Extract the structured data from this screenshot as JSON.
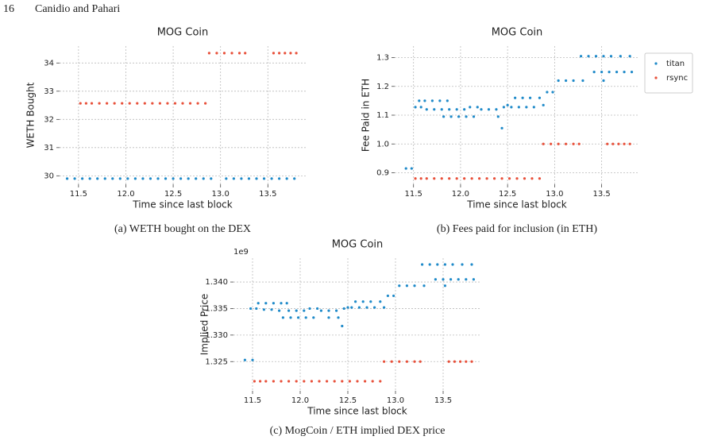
{
  "page_header": {
    "page_number": 16,
    "authors": "Canidio and Pahari"
  },
  "chart_data": [
    {
      "type": "scatter",
      "title": "MOG Coin",
      "xlabel": "Time since last block",
      "ylabel": "WETH Bought",
      "caption": "(a) WETH bought on the DEX",
      "xlim": [
        11.3,
        13.9
      ],
      "ylim": [
        29.7,
        34.6
      ],
      "xticks": [
        11.5,
        {
          "value": 12,
          "label": "12.0"
        },
        12.5,
        {
          "value": 13,
          "label": "13.0"
        },
        13.5
      ],
      "yticks": [
        30,
        31,
        32,
        33,
        34
      ],
      "grid": true,
      "series": [
        {
          "color": "#1f8ac9",
          "x": [
            11.38,
            11.46,
            11.54,
            11.62,
            11.7,
            11.78,
            11.86,
            11.94,
            12.02,
            12.1,
            12.18,
            12.26,
            12.34,
            12.42,
            12.5,
            12.58,
            12.66,
            12.74,
            12.82,
            12.9,
            13.06,
            13.14,
            13.22,
            13.3,
            13.38,
            13.46,
            13.54,
            13.62,
            13.7,
            13.78
          ],
          "values": [
            29.9,
            29.9,
            29.9,
            29.9,
            29.9,
            29.9,
            29.9,
            29.9,
            29.9,
            29.9,
            29.9,
            29.9,
            29.9,
            29.9,
            29.9,
            29.9,
            29.9,
            29.9,
            29.9,
            29.9,
            29.9,
            29.9,
            29.9,
            29.9,
            29.9,
            29.9,
            29.9,
            29.9,
            29.9,
            29.9
          ]
        },
        {
          "color": "#e8503a",
          "x": [
            11.52,
            11.58,
            11.64,
            11.72,
            11.8,
            11.88,
            11.96,
            12.04,
            12.12,
            12.2,
            12.28,
            12.36,
            12.44,
            12.52,
            12.6,
            12.68,
            12.76,
            12.84,
            12.88,
            12.96,
            13.04,
            13.12,
            13.2,
            13.26,
            13.56,
            13.62,
            13.68,
            13.74,
            13.8
          ],
          "values": [
            32.57,
            32.57,
            32.57,
            32.57,
            32.57,
            32.57,
            32.57,
            32.57,
            32.57,
            32.57,
            32.57,
            32.57,
            32.57,
            32.57,
            32.57,
            32.57,
            32.57,
            32.57,
            34.35,
            34.35,
            34.35,
            34.35,
            34.35,
            34.35,
            34.35,
            34.35,
            34.35,
            34.35,
            34.35
          ]
        }
      ]
    },
    {
      "type": "scatter",
      "title": "MOG Coin",
      "xlabel": "Time since last block",
      "ylabel": "Fee Paid in ETH",
      "caption": "(b) Fees paid for inclusion (in ETH)",
      "xlim": [
        11.3,
        13.9
      ],
      "ylim": [
        0.86,
        1.34
      ],
      "xticks": [
        11.5,
        {
          "value": 12,
          "label": "12.0"
        },
        12.5,
        {
          "value": 13,
          "label": "13.0"
        },
        13.5
      ],
      "yticks": [
        0.9,
        {
          "value": 1,
          "label": "1.0"
        },
        1.1,
        1.2,
        1.3
      ],
      "grid": true,
      "legend": "outside right",
      "series": [
        {
          "name": "titan",
          "color": "#1f8ac9",
          "x": [
            11.42,
            11.48,
            11.52,
            11.58,
            11.56,
            11.62,
            11.7,
            11.78,
            11.86,
            11.64,
            11.72,
            11.8,
            11.88,
            11.96,
            12.04,
            11.82,
            11.9,
            11.98,
            12.06,
            12.14,
            12.22,
            12.3,
            12.38,
            12.1,
            12.18,
            12.46,
            12.54,
            12.62,
            12.7,
            12.78,
            12.4,
            12.44,
            12.5,
            12.58,
            12.66,
            12.74,
            12.84,
            12.92,
            12.98,
            12.88,
            13.04,
            13.12,
            13.2,
            13.28,
            13.36,
            13.44,
            13.52,
            13.6,
            13.7,
            13.8,
            13.42,
            13.5,
            13.58,
            13.66,
            13.74,
            13.82,
            13.3,
            13.52
          ],
          "values": [
            0.915,
            0.915,
            1.128,
            1.128,
            1.15,
            1.15,
            1.15,
            1.15,
            1.15,
            1.12,
            1.12,
            1.12,
            1.12,
            1.12,
            1.12,
            1.095,
            1.095,
            1.095,
            1.095,
            1.095,
            1.12,
            1.12,
            1.12,
            1.128,
            1.128,
            1.128,
            1.128,
            1.128,
            1.128,
            1.128,
            1.095,
            1.055,
            1.135,
            1.16,
            1.16,
            1.16,
            1.16,
            1.18,
            1.18,
            1.135,
            1.22,
            1.22,
            1.22,
            1.305,
            1.305,
            1.305,
            1.305,
            1.305,
            1.305,
            1.305,
            1.25,
            1.25,
            1.25,
            1.25,
            1.25,
            1.25,
            1.22,
            1.22
          ]
        },
        {
          "name": "rsync",
          "color": "#e8503a",
          "x": [
            11.52,
            11.58,
            11.64,
            11.72,
            11.8,
            11.88,
            11.96,
            12.04,
            12.12,
            12.2,
            12.28,
            12.36,
            12.44,
            12.52,
            12.6,
            12.68,
            12.76,
            12.84,
            12.88,
            12.96,
            13.04,
            13.12,
            13.2,
            13.26,
            13.56,
            13.62,
            13.68,
            13.74,
            13.8
          ],
          "values": [
            0.88,
            0.88,
            0.88,
            0.88,
            0.88,
            0.88,
            0.88,
            0.88,
            0.88,
            0.88,
            0.88,
            0.88,
            0.88,
            0.88,
            0.88,
            0.88,
            0.88,
            0.88,
            1.0,
            1.0,
            1.0,
            1.0,
            1.0,
            1.0,
            1.0,
            1.0,
            1.0,
            1.0,
            1.0
          ]
        }
      ]
    },
    {
      "type": "scatter",
      "title": "MOG Coin",
      "xlabel": "Time since last block",
      "ylabel": "Implied Price",
      "y_offset_label": "1e9",
      "caption": "(c) MogCoin / ETH implied DEX price",
      "xlim": [
        11.3,
        13.9
      ],
      "ylim": [
        1.3195,
        1.3445
      ],
      "xticks": [
        11.5,
        {
          "value": 12,
          "label": "12.0"
        },
        12.5,
        {
          "value": 13,
          "label": "13.0"
        },
        13.5
      ],
      "yticks": [
        1.325,
        {
          "value": 1.33,
          "label": "1.330"
        },
        1.335,
        {
          "value": 1.34,
          "label": "1.340"
        }
      ],
      "grid": true,
      "series": [
        {
          "color": "#1f8ac9",
          "x": [
            11.42,
            11.5,
            11.48,
            11.54,
            11.56,
            11.64,
            11.72,
            11.8,
            11.86,
            11.62,
            11.7,
            11.78,
            11.88,
            11.96,
            12.04,
            11.82,
            11.9,
            11.98,
            12.06,
            12.14,
            12.22,
            12.3,
            12.38,
            12.1,
            12.18,
            12.46,
            12.54,
            12.62,
            12.7,
            12.78,
            12.3,
            12.4,
            12.44,
            12.5,
            12.58,
            12.66,
            12.74,
            12.84,
            12.92,
            12.98,
            12.88,
            13.04,
            13.12,
            13.2,
            13.28,
            13.36,
            13.44,
            13.52,
            13.6,
            13.7,
            13.8,
            13.42,
            13.5,
            13.58,
            13.66,
            13.74,
            13.82,
            13.3,
            13.52
          ],
          "values": [
            1.3253,
            1.3253,
            1.335,
            1.335,
            1.336,
            1.336,
            1.336,
            1.336,
            1.336,
            1.3348,
            1.3348,
            1.3346,
            1.3346,
            1.3346,
            1.3346,
            1.3333,
            1.3333,
            1.3333,
            1.3333,
            1.3333,
            1.3346,
            1.3346,
            1.3346,
            1.335,
            1.335,
            1.335,
            1.3352,
            1.3352,
            1.3352,
            1.3352,
            1.3333,
            1.3333,
            1.3317,
            1.3352,
            1.3363,
            1.3363,
            1.3363,
            1.3363,
            1.3374,
            1.3374,
            1.3352,
            1.3393,
            1.3393,
            1.3393,
            1.3433,
            1.3433,
            1.3433,
            1.3433,
            1.3433,
            1.3433,
            1.3433,
            1.3405,
            1.3405,
            1.3405,
            1.3405,
            1.3405,
            1.3405,
            1.3393,
            1.3393
          ]
        },
        {
          "color": "#e8503a",
          "x": [
            11.52,
            11.58,
            11.64,
            11.72,
            11.8,
            11.88,
            11.96,
            12.04,
            12.12,
            12.2,
            12.28,
            12.36,
            12.44,
            12.52,
            12.6,
            12.68,
            12.76,
            12.84,
            12.88,
            12.96,
            13.04,
            13.12,
            13.2,
            13.26,
            13.56,
            13.62,
            13.68,
            13.74,
            13.8
          ],
          "values": [
            1.3213,
            1.3213,
            1.3213,
            1.3213,
            1.3213,
            1.3213,
            1.3213,
            1.3213,
            1.3213,
            1.3213,
            1.3213,
            1.3213,
            1.3213,
            1.3213,
            1.3213,
            1.3213,
            1.3213,
            1.3213,
            1.325,
            1.325,
            1.325,
            1.325,
            1.325,
            1.325,
            1.325,
            1.325,
            1.325,
            1.325,
            1.325
          ]
        }
      ]
    }
  ]
}
